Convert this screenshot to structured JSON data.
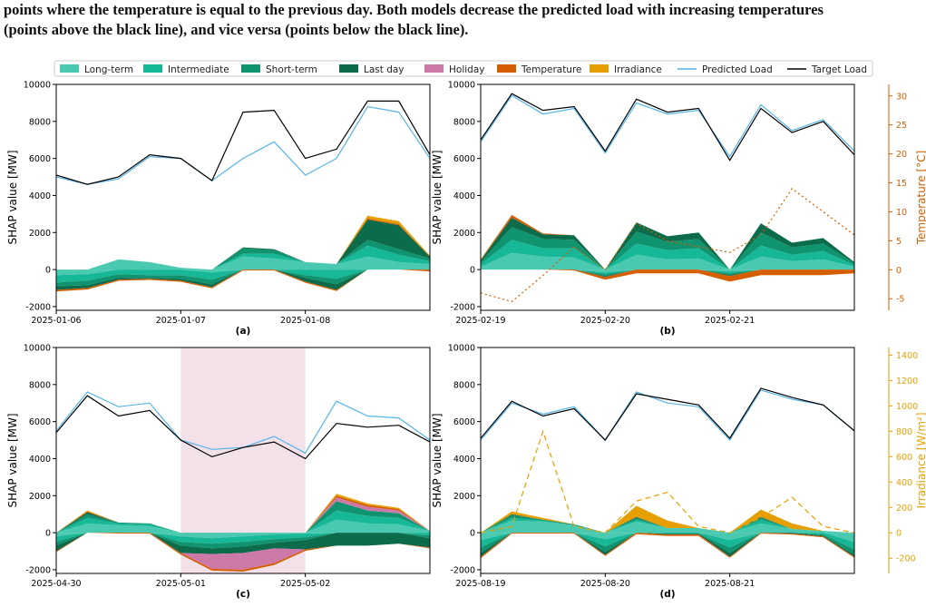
{
  "caption": {
    "line1": "points where the temperature is equal to the previous day. Both models decrease the predicted load with increasing temperatures",
    "line2": "(points above the black line), and vice versa (points below the black line)."
  },
  "legend": [
    {
      "label": "Long-term",
      "kind": "patch",
      "color": "#48c9b0"
    },
    {
      "label": "Intermediate",
      "kind": "patch",
      "color": "#17b897"
    },
    {
      "label": "Short-term",
      "kind": "patch",
      "color": "#10946f"
    },
    {
      "label": "Last day",
      "kind": "patch",
      "color": "#0b6b4b"
    },
    {
      "label": "Holiday",
      "kind": "patch",
      "color": "#cc79a7"
    },
    {
      "label": "Temperature",
      "kind": "patch",
      "color": "#d55e00"
    },
    {
      "label": "Irradiance",
      "kind": "patch",
      "color": "#e69f00"
    },
    {
      "label": "Predicted Load",
      "kind": "line",
      "color": "#56b4e9"
    },
    {
      "label": "Target Load",
      "kind": "line",
      "color": "#000000"
    }
  ],
  "chart_data": [
    {
      "id": "a",
      "type": "area",
      "panel_label": "(a)",
      "ylabel": "SHAP value [MW]",
      "ylim": [
        -2200,
        10000
      ],
      "yticks": [
        -2000,
        0,
        2000,
        4000,
        6000,
        8000,
        10000
      ],
      "x_tick_labels": [
        "2025-01-06",
        "2025-01-07",
        "2025-01-08"
      ],
      "x": [
        0,
        0.25,
        0.5,
        0.75,
        1,
        1.25,
        1.5,
        1.75,
        2,
        2.25,
        2.5,
        2.75,
        3
      ],
      "target": [
        5100,
        4600,
        5000,
        6200,
        6000,
        4800,
        8500,
        8600,
        6000,
        6500,
        9100,
        9100,
        6200
      ],
      "predicted": [
        5000,
        4600,
        4900,
        6100,
        6000,
        4800,
        6000,
        6900,
        5100,
        6000,
        8800,
        8500,
        6000
      ],
      "series": [
        {
          "name": "Long-term",
          "values": [
            -300,
            -250,
            550,
            400,
            100,
            -150,
            700,
            600,
            400,
            300,
            700,
            400,
            300
          ]
        },
        {
          "name": "Intermediate",
          "values": [
            -400,
            -350,
            -250,
            -300,
            -300,
            -400,
            150,
            250,
            -300,
            -500,
            600,
            400,
            150
          ]
        },
        {
          "name": "Short-term",
          "values": [
            -200,
            -250,
            -200,
            -150,
            -200,
            -250,
            300,
            200,
            -150,
            -300,
            300,
            300,
            150
          ]
        },
        {
          "name": "Last day",
          "values": [
            -200,
            -150,
            -100,
            -50,
            -100,
            -150,
            50,
            50,
            -200,
            -300,
            1100,
            1300,
            100
          ]
        },
        {
          "name": "Holiday",
          "values": [
            0,
            0,
            0,
            0,
            0,
            0,
            0,
            0,
            0,
            0,
            0,
            0,
            0
          ]
        },
        {
          "name": "Temperature",
          "values": [
            -80,
            -80,
            -60,
            -60,
            -60,
            -60,
            -50,
            -50,
            -60,
            -60,
            60,
            60,
            -100
          ]
        },
        {
          "name": "Irradiance",
          "values": [
            0,
            0,
            0,
            0,
            0,
            0,
            0,
            0,
            0,
            0,
            150,
            150,
            50
          ]
        }
      ],
      "secondary": null
    },
    {
      "id": "b",
      "type": "area",
      "panel_label": "(b)",
      "ylabel": "SHAP value [MW]",
      "ylim": [
        -2200,
        10000
      ],
      "yticks": [
        -2000,
        0,
        2000,
        4000,
        6000,
        8000,
        10000
      ],
      "x_tick_labels": [
        "2025-02-19",
        "2025-02-20",
        "2025-02-21"
      ],
      "x": [
        0,
        0.25,
        0.5,
        0.75,
        1,
        1.25,
        1.5,
        1.75,
        2,
        2.25,
        2.5,
        2.75,
        3
      ],
      "target": [
        7000,
        9500,
        8600,
        8800,
        6400,
        9200,
        8500,
        8700,
        5900,
        8700,
        7400,
        8000,
        6200
      ],
      "predicted": [
        6900,
        9400,
        8400,
        8700,
        6300,
        9000,
        8400,
        8600,
        6100,
        8900,
        7500,
        8100,
        6400
      ],
      "series": [
        {
          "name": "Long-term",
          "values": [
            150,
            900,
            700,
            650,
            -150,
            800,
            550,
            600,
            -100,
            700,
            450,
            550,
            150
          ]
        },
        {
          "name": "Intermediate",
          "values": [
            150,
            700,
            450,
            500,
            -100,
            600,
            500,
            550,
            -100,
            600,
            350,
            450,
            100
          ]
        },
        {
          "name": "Short-term",
          "values": [
            100,
            700,
            500,
            450,
            -100,
            650,
            450,
            500,
            -100,
            700,
            400,
            400,
            100
          ]
        },
        {
          "name": "Last day",
          "values": [
            100,
            500,
            250,
            250,
            -50,
            500,
            300,
            350,
            -50,
            500,
            250,
            300,
            50
          ]
        },
        {
          "name": "Holiday",
          "values": [
            0,
            0,
            0,
            0,
            0,
            0,
            0,
            0,
            0,
            0,
            0,
            0,
            0
          ]
        },
        {
          "name": "Temperature",
          "values": [
            50,
            150,
            50,
            -50,
            -150,
            -200,
            -200,
            -200,
            -300,
            -300,
            -300,
            -300,
            -200
          ]
        },
        {
          "name": "Irradiance",
          "values": [
            0,
            0,
            0,
            0,
            0,
            0,
            0,
            0,
            0,
            0,
            0,
            0,
            0
          ]
        }
      ],
      "secondary": {
        "label": "Temperature [°C]",
        "color": "#d55e00",
        "dash": "2,3",
        "ylim": [
          -7,
          32
        ],
        "ticks": [
          -5,
          0,
          5,
          10,
          15,
          20,
          25,
          30
        ],
        "values": [
          -4,
          -5.5,
          -1,
          4,
          0,
          8,
          5,
          4,
          3,
          6,
          14,
          10,
          6
        ]
      }
    },
    {
      "id": "c",
      "type": "area",
      "panel_label": "(c)",
      "ylabel": "SHAP value [MW]",
      "ylim": [
        -2200,
        10000
      ],
      "yticks": [
        -2000,
        0,
        2000,
        4000,
        6000,
        8000,
        10000
      ],
      "x_tick_labels": [
        "2025-04-30",
        "2025-05-01",
        "2025-05-02"
      ],
      "holiday_span": [
        1,
        2
      ],
      "x": [
        0,
        0.25,
        0.5,
        0.75,
        1,
        1.25,
        1.5,
        1.75,
        2,
        2.25,
        2.5,
        2.75,
        3
      ],
      "target": [
        5400,
        7400,
        6300,
        6600,
        5000,
        4100,
        4600,
        4900,
        4000,
        5900,
        5700,
        5800,
        4900
      ],
      "predicted": [
        5500,
        7600,
        6800,
        7000,
        5000,
        4500,
        4600,
        5200,
        4300,
        7100,
        6300,
        6200,
        5000
      ],
      "series": [
        {
          "name": "Long-term",
          "values": [
            -200,
            500,
            400,
            350,
            -200,
            -300,
            -200,
            -100,
            -50,
            700,
            500,
            450,
            100
          ]
        },
        {
          "name": "Intermediate",
          "values": [
            -300,
            300,
            100,
            100,
            -300,
            -300,
            -300,
            -250,
            -200,
            500,
            400,
            350,
            -150
          ]
        },
        {
          "name": "Short-term",
          "values": [
            -200,
            200,
            50,
            50,
            -200,
            -250,
            -250,
            -200,
            -150,
            500,
            300,
            250,
            -150
          ]
        },
        {
          "name": "Last day",
          "values": [
            -300,
            100,
            0,
            0,
            -400,
            -300,
            -350,
            -300,
            -500,
            -700,
            -700,
            -600,
            -500
          ]
        },
        {
          "name": "Holiday",
          "values": [
            0,
            0,
            0,
            0,
            0,
            -800,
            -900,
            -800,
            0,
            200,
            200,
            150,
            0
          ]
        },
        {
          "name": "Temperature",
          "values": [
            -50,
            50,
            -50,
            -50,
            -80,
            -100,
            -100,
            -100,
            -80,
            100,
            100,
            80,
            -50
          ]
        },
        {
          "name": "Irradiance",
          "values": [
            0,
            50,
            0,
            0,
            0,
            0,
            0,
            0,
            0,
            100,
            80,
            60,
            0
          ]
        }
      ],
      "secondary": null
    },
    {
      "id": "d",
      "type": "area",
      "panel_label": "(d)",
      "ylabel": "SHAP value [MW]",
      "ylim": [
        -2200,
        10000
      ],
      "yticks": [
        -2000,
        0,
        2000,
        4000,
        6000,
        8000,
        10000
      ],
      "x_tick_labels": [
        "2025-08-19",
        "2025-08-20",
        "2025-08-21"
      ],
      "x": [
        0,
        0.25,
        0.5,
        0.75,
        1,
        1.25,
        1.5,
        1.75,
        2,
        2.25,
        2.5,
        2.75,
        3
      ],
      "target": [
        5100,
        7100,
        6300,
        6700,
        5000,
        7500,
        7200,
        6900,
        5100,
        7800,
        7300,
        6900,
        5500
      ],
      "predicted": [
        5000,
        7000,
        6400,
        6800,
        5000,
        7600,
        7000,
        6800,
        5000,
        7700,
        7200,
        6900,
        5500
      ],
      "series": [
        {
          "name": "Long-term",
          "values": [
            -400,
            650,
            600,
            400,
            -350,
            600,
            250,
            250,
            -400,
            500,
            200,
            100,
            -500
          ]
        },
        {
          "name": "Intermediate",
          "values": [
            -400,
            150,
            50,
            0,
            -400,
            100,
            -50,
            -50,
            -400,
            200,
            0,
            -100,
            -400
          ]
        },
        {
          "name": "Short-term",
          "values": [
            -300,
            150,
            50,
            50,
            -300,
            100,
            0,
            0,
            -300,
            100,
            0,
            -50,
            -300
          ]
        },
        {
          "name": "Last day",
          "values": [
            -200,
            50,
            0,
            0,
            -150,
            50,
            -50,
            -50,
            -200,
            50,
            -50,
            -50,
            -100
          ]
        },
        {
          "name": "Holiday",
          "values": [
            0,
            0,
            0,
            0,
            0,
            0,
            0,
            0,
            0,
            0,
            0,
            0,
            0
          ]
        },
        {
          "name": "Temperature",
          "values": [
            -80,
            -50,
            -50,
            -50,
            -50,
            -80,
            -80,
            -80,
            -50,
            -50,
            -50,
            -50,
            -50
          ]
        },
        {
          "name": "Irradiance",
          "values": [
            0,
            150,
            100,
            0,
            0,
            600,
            400,
            0,
            0,
            400,
            300,
            0,
            0
          ]
        }
      ],
      "secondary": {
        "label": "Irradiance [W/m²]",
        "color": "#e69f00",
        "dash": "6,4",
        "ylim": [
          -320,
          1460
        ],
        "ticks": [
          -200,
          0,
          200,
          400,
          600,
          800,
          1000,
          1200,
          1400
        ],
        "values": [
          0,
          50,
          800,
          50,
          0,
          250,
          320,
          50,
          0,
          120,
          280,
          50,
          0
        ]
      }
    }
  ]
}
